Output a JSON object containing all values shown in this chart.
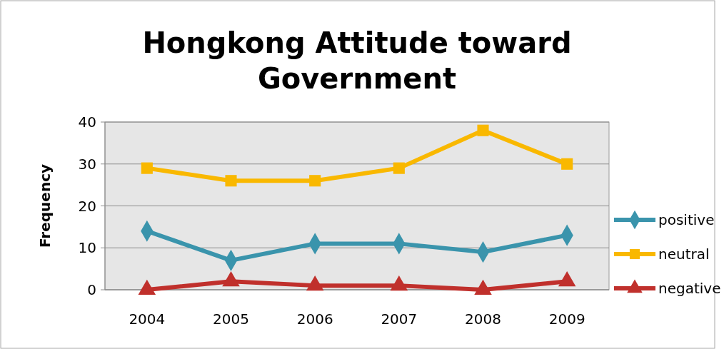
{
  "chart_data": {
    "type": "line",
    "title": "Hongkong Attitude toward Government",
    "ylabel": "Frequency",
    "categories": [
      "2004",
      "2005",
      "2006",
      "2007",
      "2008",
      "2009"
    ],
    "series": [
      {
        "name": "positive",
        "color": "#3a94ac",
        "marker": "diamond",
        "values": [
          14,
          7,
          11,
          11,
          9,
          13
        ]
      },
      {
        "name": "neutral",
        "color": "#f9b800",
        "marker": "square",
        "values": [
          29,
          26,
          26,
          29,
          38,
          30
        ]
      },
      {
        "name": "negative",
        "color": "#c0302c",
        "marker": "triangle",
        "values": [
          0,
          2,
          1,
          1,
          0,
          2
        ]
      }
    ],
    "ylim": [
      0,
      40
    ],
    "yticks": [
      0,
      10,
      20,
      30,
      40
    ],
    "grid": "y",
    "legend": "right"
  }
}
